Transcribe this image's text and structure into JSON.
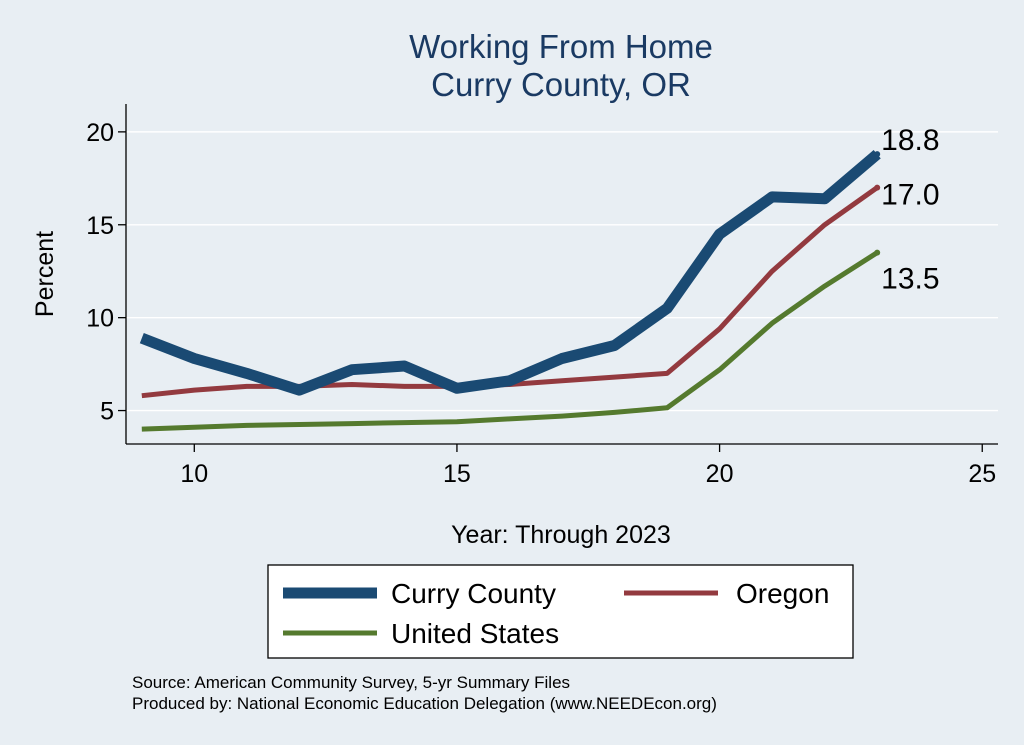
{
  "chart_data": {
    "type": "line",
    "title": "Working From Home",
    "subtitle": "Curry County, OR",
    "xlabel": "Year: Through 2023",
    "ylabel": "Percent",
    "xlim": [
      8.7,
      25.3
    ],
    "ylim": [
      3.2,
      21.5
    ],
    "xticks": [
      10,
      15,
      20,
      25
    ],
    "yticks": [
      5,
      10,
      15,
      20
    ],
    "grid": true,
    "legend_position": "bottom",
    "series": [
      {
        "name": "Curry County",
        "color": "#1a4a73",
        "x": [
          9,
          10,
          11,
          12,
          13,
          14,
          15,
          16,
          17,
          18,
          19,
          20,
          21,
          22,
          23
        ],
        "values": [
          8.9,
          7.8,
          7.0,
          6.1,
          7.2,
          7.4,
          6.2,
          6.6,
          7.8,
          8.5,
          10.5,
          14.5,
          16.5,
          16.4,
          18.8
        ],
        "end_label": "18.8"
      },
      {
        "name": "Oregon",
        "color": "#933a3f",
        "x": [
          9,
          10,
          11,
          12,
          13,
          14,
          15,
          16,
          17,
          18,
          19,
          20,
          21,
          22,
          23
        ],
        "values": [
          5.8,
          6.1,
          6.3,
          6.3,
          6.4,
          6.3,
          6.3,
          6.4,
          6.6,
          6.8,
          7.0,
          9.4,
          12.5,
          15.0,
          17.0
        ],
        "end_label": "17.0"
      },
      {
        "name": "United States",
        "color": "#557a2e",
        "x": [
          9,
          10,
          11,
          12,
          13,
          14,
          15,
          16,
          17,
          18,
          19,
          20,
          21,
          22,
          23
        ],
        "values": [
          4.0,
          4.1,
          4.2,
          4.25,
          4.3,
          4.35,
          4.4,
          4.55,
          4.7,
          4.9,
          5.15,
          7.2,
          9.7,
          11.7,
          13.5
        ],
        "end_label": "13.5"
      }
    ]
  },
  "legend": {
    "items": [
      {
        "label": "Curry County"
      },
      {
        "label": "Oregon"
      },
      {
        "label": "United States"
      }
    ]
  },
  "footer": {
    "source_line": "Source: American Community Survey, 5-yr Summary Files",
    "produced_line": "Produced by: National Economic Education Delegation (www.NEEDEcon.org)"
  }
}
